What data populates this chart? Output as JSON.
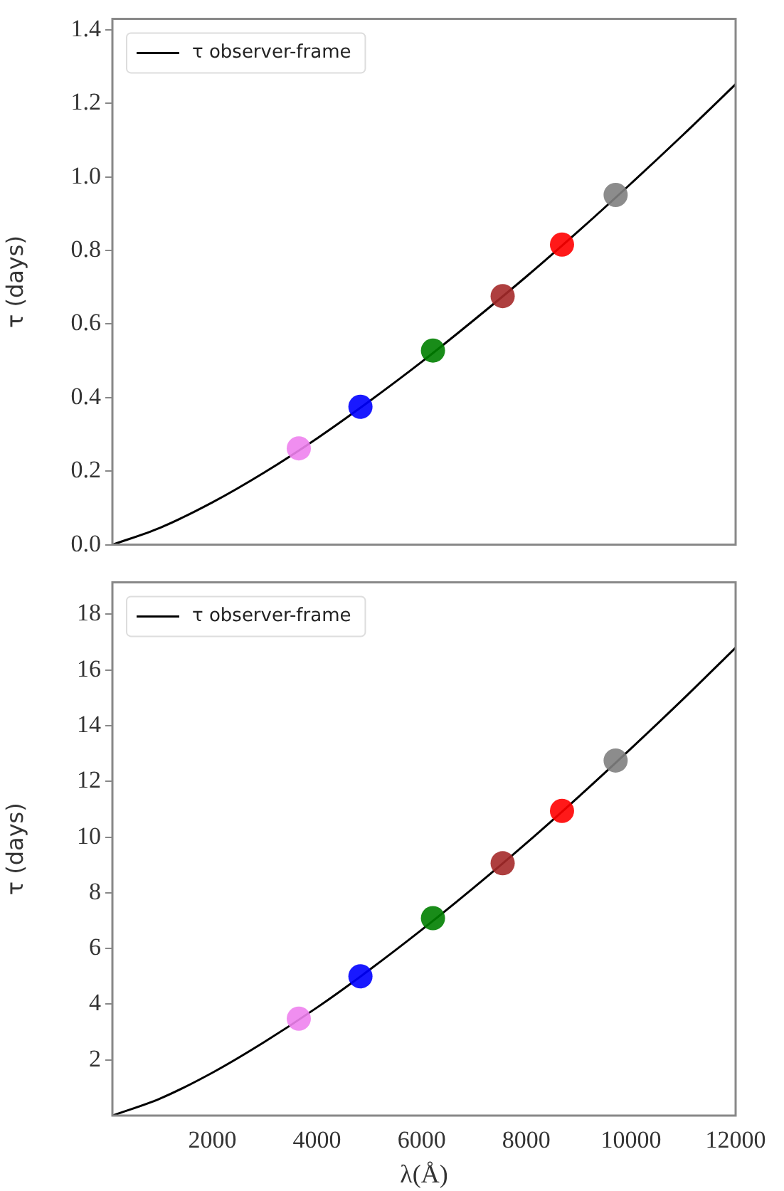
{
  "chart_data": [
    {
      "type": "line",
      "ylabel": "τ (days)",
      "xlim": [
        90,
        12000
      ],
      "ylim": [
        0,
        1.43
      ],
      "yticks": [
        {
          "value": 0,
          "label": "0.0"
        },
        0.2,
        0.4,
        0.6,
        0.8,
        {
          "value": 1,
          "label": "1.0"
        },
        1.2,
        1.4
      ],
      "tick_labels": "y",
      "grid": false,
      "legend": "top left",
      "series": [
        {
          "name": "τ observer-frame",
          "type": "line",
          "color": "#000000",
          "marker": "none",
          "line_style": "solid",
          "x": [
            90,
            1000,
            2000,
            3000,
            4000,
            5000,
            6000,
            7000,
            8000,
            9000,
            10000,
            11000,
            12000
          ],
          "values": [
            0,
            0.046,
            0.115,
            0.197,
            0.289,
            0.39,
            0.497,
            0.611,
            0.729,
            0.853,
            0.982,
            1.115,
            1.252
          ]
        },
        {
          "type": "scatter",
          "marker": "circle",
          "x": [
            3652,
            4830,
            6216,
            7548,
            8682,
            9707
          ],
          "values": [
            0.262,
            0.375,
            0.528,
            0.676,
            0.816,
            0.951
          ],
          "colors": [
            "#ee82ee",
            "#0000ff",
            "#008000",
            "#a52a2a",
            "#ff0000",
            "#808080"
          ]
        }
      ]
    },
    {
      "type": "line",
      "xlabel": "λ(Å)",
      "ylabel": "τ (days)",
      "xlim": [
        90,
        12000
      ],
      "ylim": [
        0,
        19.15
      ],
      "xticks": [
        2000,
        4000,
        6000,
        8000,
        10000,
        12000
      ],
      "yticks": [
        2,
        4,
        6,
        8,
        10,
        12,
        14,
        16,
        18
      ],
      "grid": false,
      "legend": "top left",
      "series": [
        {
          "name": "τ observer-frame",
          "type": "line",
          "color": "#000000",
          "marker": "none",
          "line_style": "solid",
          "x": [
            90,
            1000,
            2000,
            3000,
            4000,
            5000,
            6000,
            7000,
            8000,
            9000,
            10000,
            11000,
            12000
          ],
          "values": [
            0,
            0.61,
            1.54,
            2.65,
            3.88,
            5.23,
            6.67,
            8.19,
            9.78,
            11.45,
            13.18,
            14.96,
            16.8
          ]
        },
        {
          "type": "scatter",
          "marker": "circle",
          "x": [
            3652,
            4830,
            6216,
            7548,
            8682,
            9707
          ],
          "values": [
            3.48,
            5.0,
            7.09,
            9.06,
            10.94,
            12.75
          ],
          "colors": [
            "#ee82ee",
            "#0000ff",
            "#008000",
            "#a52a2a",
            "#ff0000",
            "#808080"
          ]
        }
      ]
    }
  ]
}
